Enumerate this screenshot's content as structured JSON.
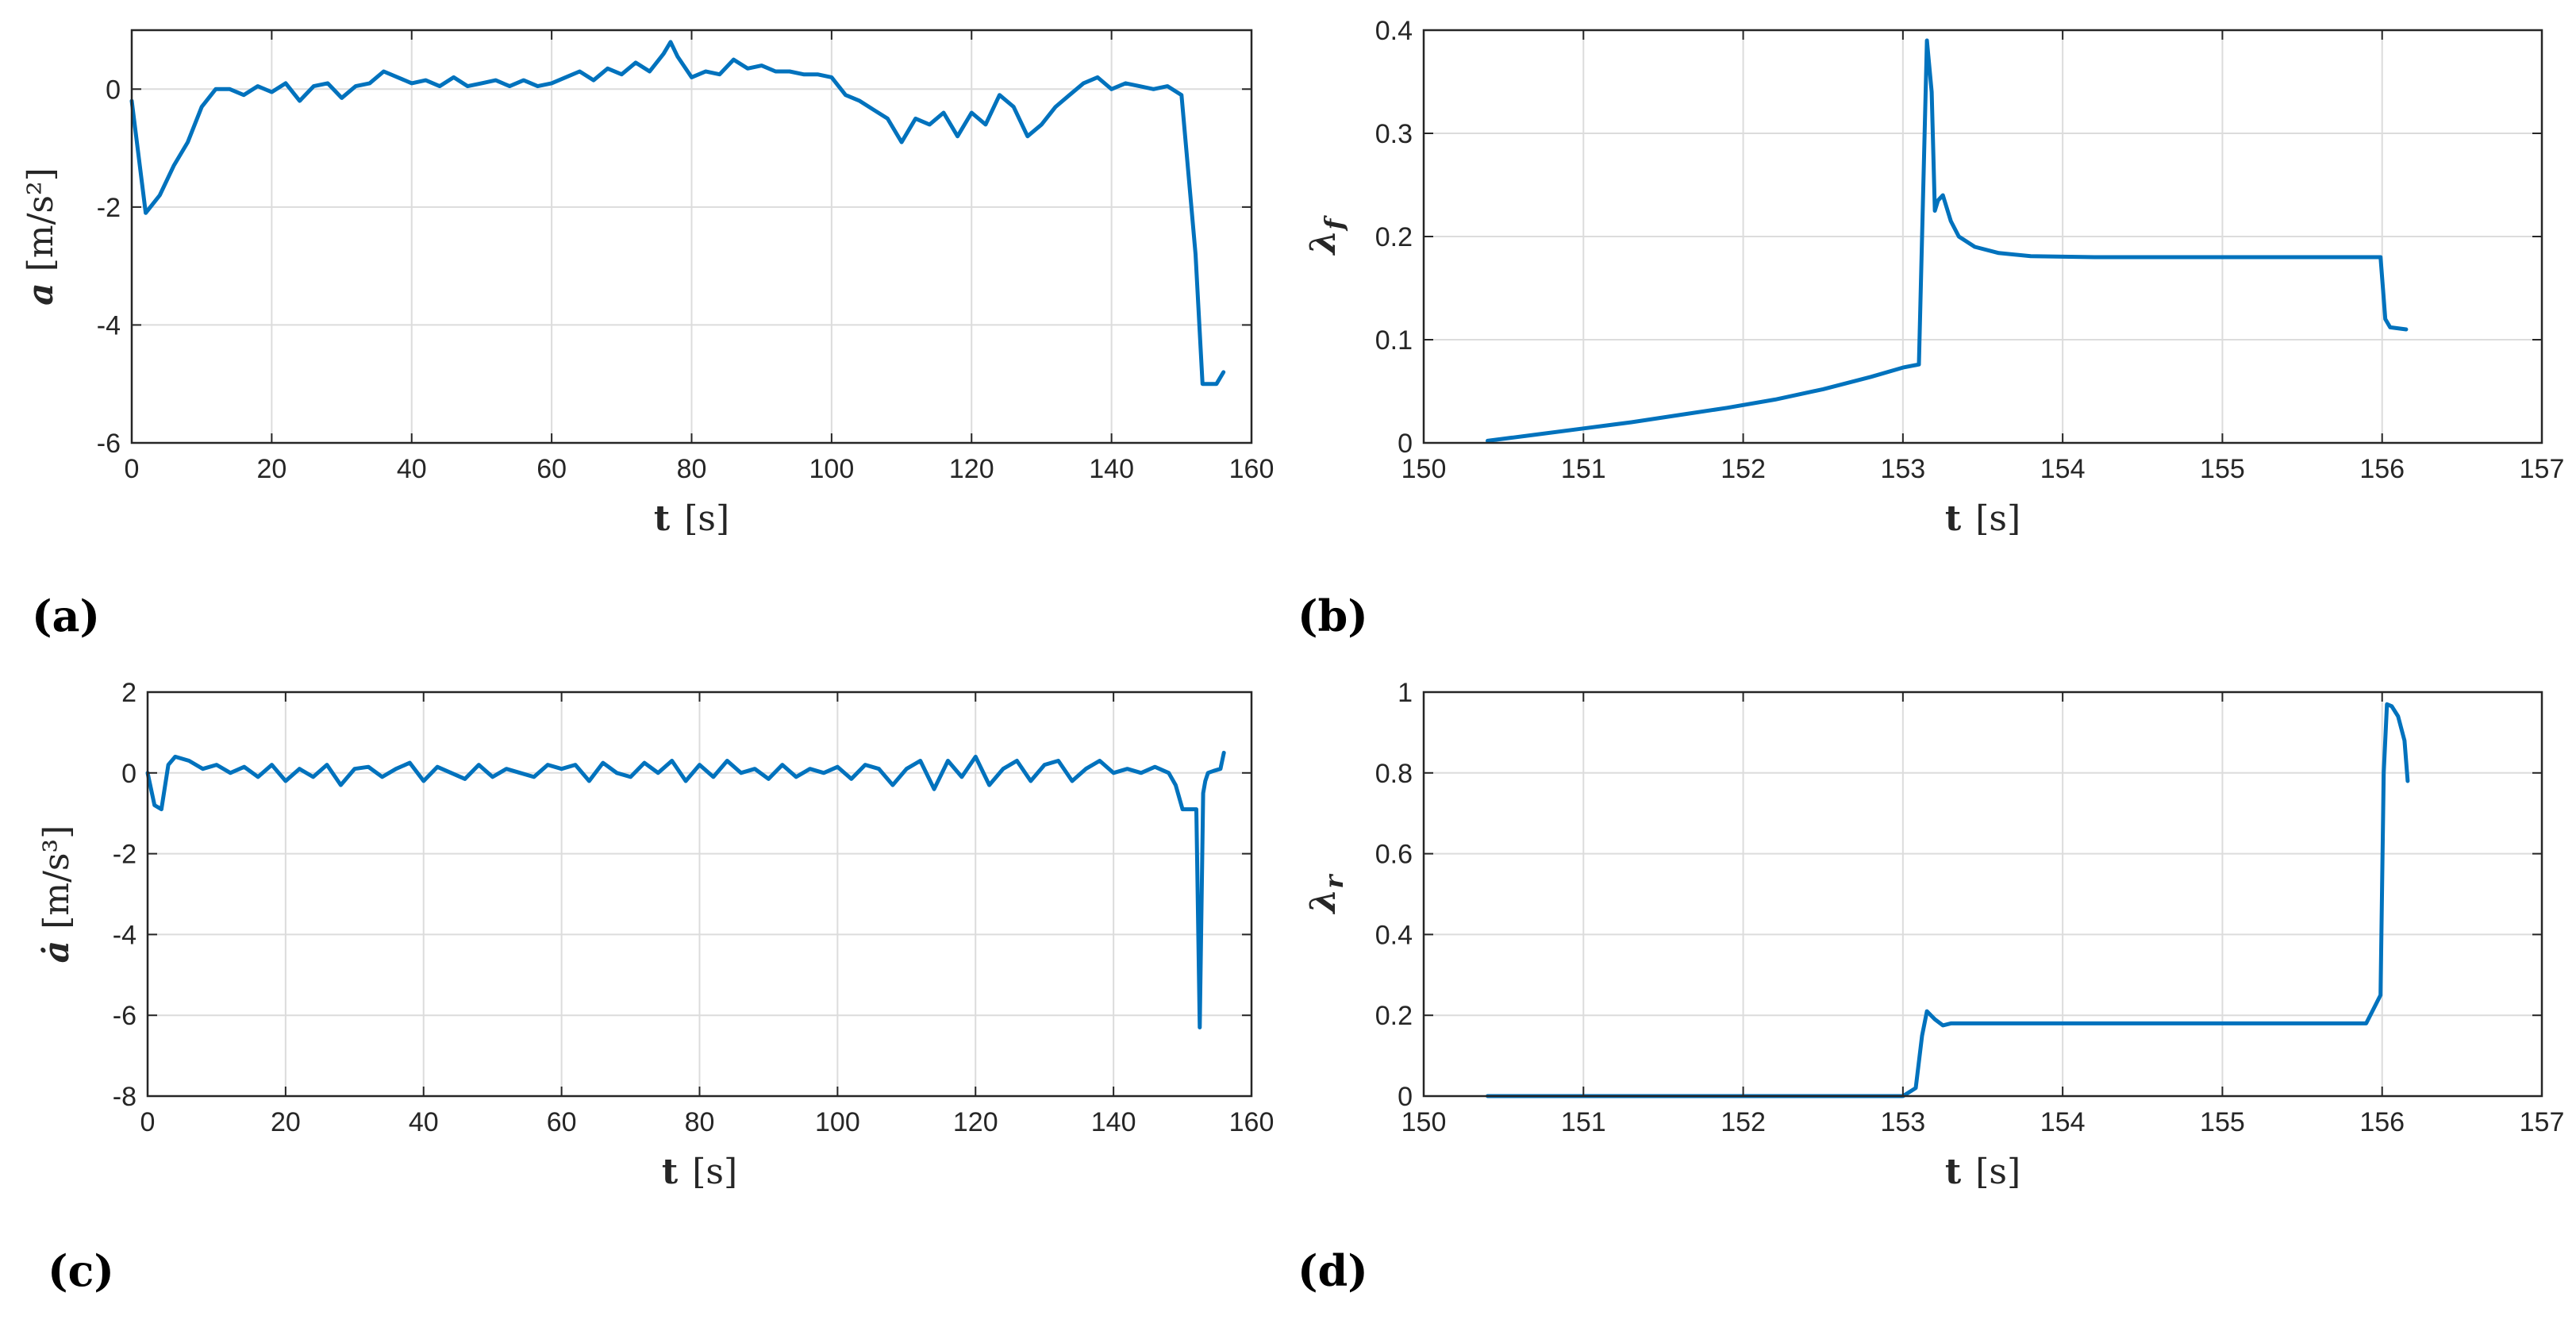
{
  "chart_data": [
    {
      "panel": "(a)",
      "type": "line",
      "xlabel_main": "t",
      "xlabel_unit": "[s]",
      "ylabel_main": "a",
      "ylabel_unit": "[m/s²]",
      "xlim": [
        0,
        160
      ],
      "ylim": [
        -6,
        1
      ],
      "xticks": [
        0,
        20,
        40,
        60,
        80,
        100,
        120,
        140,
        160
      ],
      "yticks": [
        -6,
        -4,
        -2,
        0
      ],
      "grid": true,
      "color": "#0072bd",
      "x": [
        0,
        2,
        4,
        6,
        8,
        10,
        12,
        14,
        16,
        18,
        20,
        22,
        24,
        26,
        28,
        30,
        32,
        34,
        36,
        38,
        40,
        42,
        44,
        46,
        48,
        50,
        52,
        54,
        56,
        58,
        60,
        62,
        64,
        66,
        68,
        70,
        72,
        74,
        76,
        77,
        78,
        80,
        82,
        84,
        86,
        88,
        90,
        92,
        94,
        96,
        98,
        100,
        102,
        104,
        106,
        108,
        110,
        112,
        114,
        116,
        118,
        120,
        122,
        124,
        126,
        128,
        130,
        132,
        134,
        136,
        138,
        140,
        142,
        144,
        146,
        148,
        150,
        152,
        153,
        154,
        155,
        156
      ],
      "y": [
        -0.2,
        -2.1,
        -1.8,
        -1.3,
        -0.9,
        -0.3,
        0.0,
        0.0,
        -0.1,
        0.05,
        -0.05,
        0.1,
        -0.2,
        0.05,
        0.1,
        -0.15,
        0.05,
        0.1,
        0.3,
        0.2,
        0.1,
        0.15,
        0.05,
        0.2,
        0.05,
        0.1,
        0.15,
        0.05,
        0.15,
        0.05,
        0.1,
        0.2,
        0.3,
        0.15,
        0.35,
        0.25,
        0.45,
        0.3,
        0.6,
        0.8,
        0.55,
        0.2,
        0.3,
        0.25,
        0.5,
        0.35,
        0.4,
        0.3,
        0.3,
        0.25,
        0.25,
        0.2,
        -0.1,
        -0.2,
        -0.35,
        -0.5,
        -0.9,
        -0.5,
        -0.6,
        -0.4,
        -0.8,
        -0.4,
        -0.6,
        -0.1,
        -0.3,
        -0.8,
        -0.6,
        -0.3,
        -0.1,
        0.1,
        0.2,
        0.0,
        0.1,
        0.05,
        0.0,
        0.05,
        -0.1,
        -2.8,
        -5.0,
        -5.0,
        -5.0,
        -4.8
      ]
    },
    {
      "panel": "(b)",
      "type": "line",
      "xlabel_main": "t",
      "xlabel_unit": "[s]",
      "ylabel_main": "λ",
      "ylabel_sub": "f",
      "xlim": [
        150,
        157
      ],
      "ylim": [
        0,
        0.4
      ],
      "xticks": [
        150,
        151,
        152,
        153,
        154,
        155,
        156,
        157
      ],
      "yticks": [
        0,
        0.1,
        0.2,
        0.3,
        0.4
      ],
      "grid": true,
      "color": "#0072bd",
      "x": [
        150.4,
        150.7,
        151.0,
        151.3,
        151.6,
        151.9,
        152.2,
        152.5,
        152.8,
        153.0,
        153.1,
        153.15,
        153.18,
        153.2,
        153.22,
        153.25,
        153.3,
        153.35,
        153.45,
        153.6,
        153.8,
        154.2,
        155.0,
        155.6,
        155.99,
        156.02,
        156.05,
        156.15
      ],
      "y": [
        0.002,
        0.008,
        0.014,
        0.02,
        0.027,
        0.034,
        0.042,
        0.052,
        0.064,
        0.073,
        0.076,
        0.39,
        0.34,
        0.225,
        0.235,
        0.24,
        0.215,
        0.2,
        0.19,
        0.184,
        0.181,
        0.18,
        0.18,
        0.18,
        0.18,
        0.12,
        0.112,
        0.11
      ]
    },
    {
      "panel": "(c)",
      "type": "line",
      "xlabel_main": "t",
      "xlabel_unit": "[s]",
      "ylabel_main": "ȧ",
      "ylabel_unit": "[m/s³]",
      "xlim": [
        0,
        160
      ],
      "ylim": [
        -8,
        2
      ],
      "xticks": [
        0,
        20,
        40,
        60,
        80,
        100,
        120,
        140,
        160
      ],
      "yticks": [
        -8,
        -6,
        -4,
        -2,
        0,
        2
      ],
      "grid": true,
      "color": "#0072bd",
      "x": [
        0,
        1,
        2,
        3,
        4,
        6,
        8,
        10,
        12,
        14,
        16,
        18,
        20,
        22,
        24,
        26,
        28,
        30,
        32,
        34,
        36,
        38,
        40,
        42,
        44,
        46,
        48,
        50,
        52,
        54,
        56,
        58,
        60,
        62,
        64,
        66,
        68,
        70,
        72,
        74,
        76,
        78,
        80,
        82,
        84,
        86,
        88,
        90,
        92,
        94,
        96,
        98,
        100,
        102,
        104,
        106,
        108,
        110,
        112,
        114,
        116,
        118,
        120,
        122,
        124,
        126,
        128,
        130,
        132,
        134,
        136,
        138,
        140,
        142,
        144,
        146,
        148,
        149,
        150,
        152,
        152.5,
        153,
        153.3,
        153.7,
        154.5,
        155.5,
        156
      ],
      "y": [
        0,
        -0.8,
        -0.9,
        0.2,
        0.4,
        0.3,
        0.1,
        0.2,
        0.0,
        0.15,
        -0.1,
        0.2,
        -0.2,
        0.1,
        -0.1,
        0.2,
        -0.3,
        0.1,
        0.15,
        -0.1,
        0.1,
        0.25,
        -0.2,
        0.15,
        0.0,
        -0.15,
        0.2,
        -0.1,
        0.1,
        0.0,
        -0.1,
        0.2,
        0.1,
        0.2,
        -0.2,
        0.25,
        0.0,
        -0.1,
        0.25,
        0.0,
        0.3,
        -0.2,
        0.2,
        -0.1,
        0.3,
        0.0,
        0.1,
        -0.15,
        0.2,
        -0.1,
        0.1,
        0.0,
        0.15,
        -0.15,
        0.2,
        0.1,
        -0.3,
        0.1,
        0.3,
        -0.4,
        0.3,
        -0.1,
        0.4,
        -0.3,
        0.1,
        0.3,
        -0.2,
        0.2,
        0.3,
        -0.2,
        0.1,
        0.3,
        0.0,
        0.1,
        0.0,
        0.15,
        0.0,
        -0.3,
        -0.9,
        -0.9,
        -6.3,
        -0.5,
        -0.2,
        0.0,
        0.05,
        0.1,
        0.5
      ]
    },
    {
      "panel": "(d)",
      "type": "line",
      "xlabel_main": "t",
      "xlabel_unit": "[s]",
      "ylabel_main": "λ",
      "ylabel_sub": "r",
      "xlim": [
        150,
        157
      ],
      "ylim": [
        0,
        1
      ],
      "xticks": [
        150,
        151,
        152,
        153,
        154,
        155,
        156,
        157
      ],
      "yticks": [
        0,
        0.2,
        0.4,
        0.6,
        0.8,
        1
      ],
      "grid": true,
      "color": "#0072bd",
      "x": [
        150.4,
        151.0,
        152.0,
        153.0,
        153.08,
        153.12,
        153.15,
        153.2,
        153.25,
        153.3,
        153.4,
        154.0,
        155.0,
        155.9,
        155.99,
        156.01,
        156.03,
        156.06,
        156.1,
        156.14,
        156.16
      ],
      "y": [
        0.0,
        0.0,
        0.0,
        0.0,
        0.02,
        0.15,
        0.21,
        0.19,
        0.175,
        0.18,
        0.18,
        0.18,
        0.18,
        0.18,
        0.25,
        0.8,
        0.97,
        0.965,
        0.94,
        0.88,
        0.78
      ]
    }
  ],
  "panel_labels": [
    "(a)",
    "(b)",
    "(c)",
    "(d)"
  ]
}
